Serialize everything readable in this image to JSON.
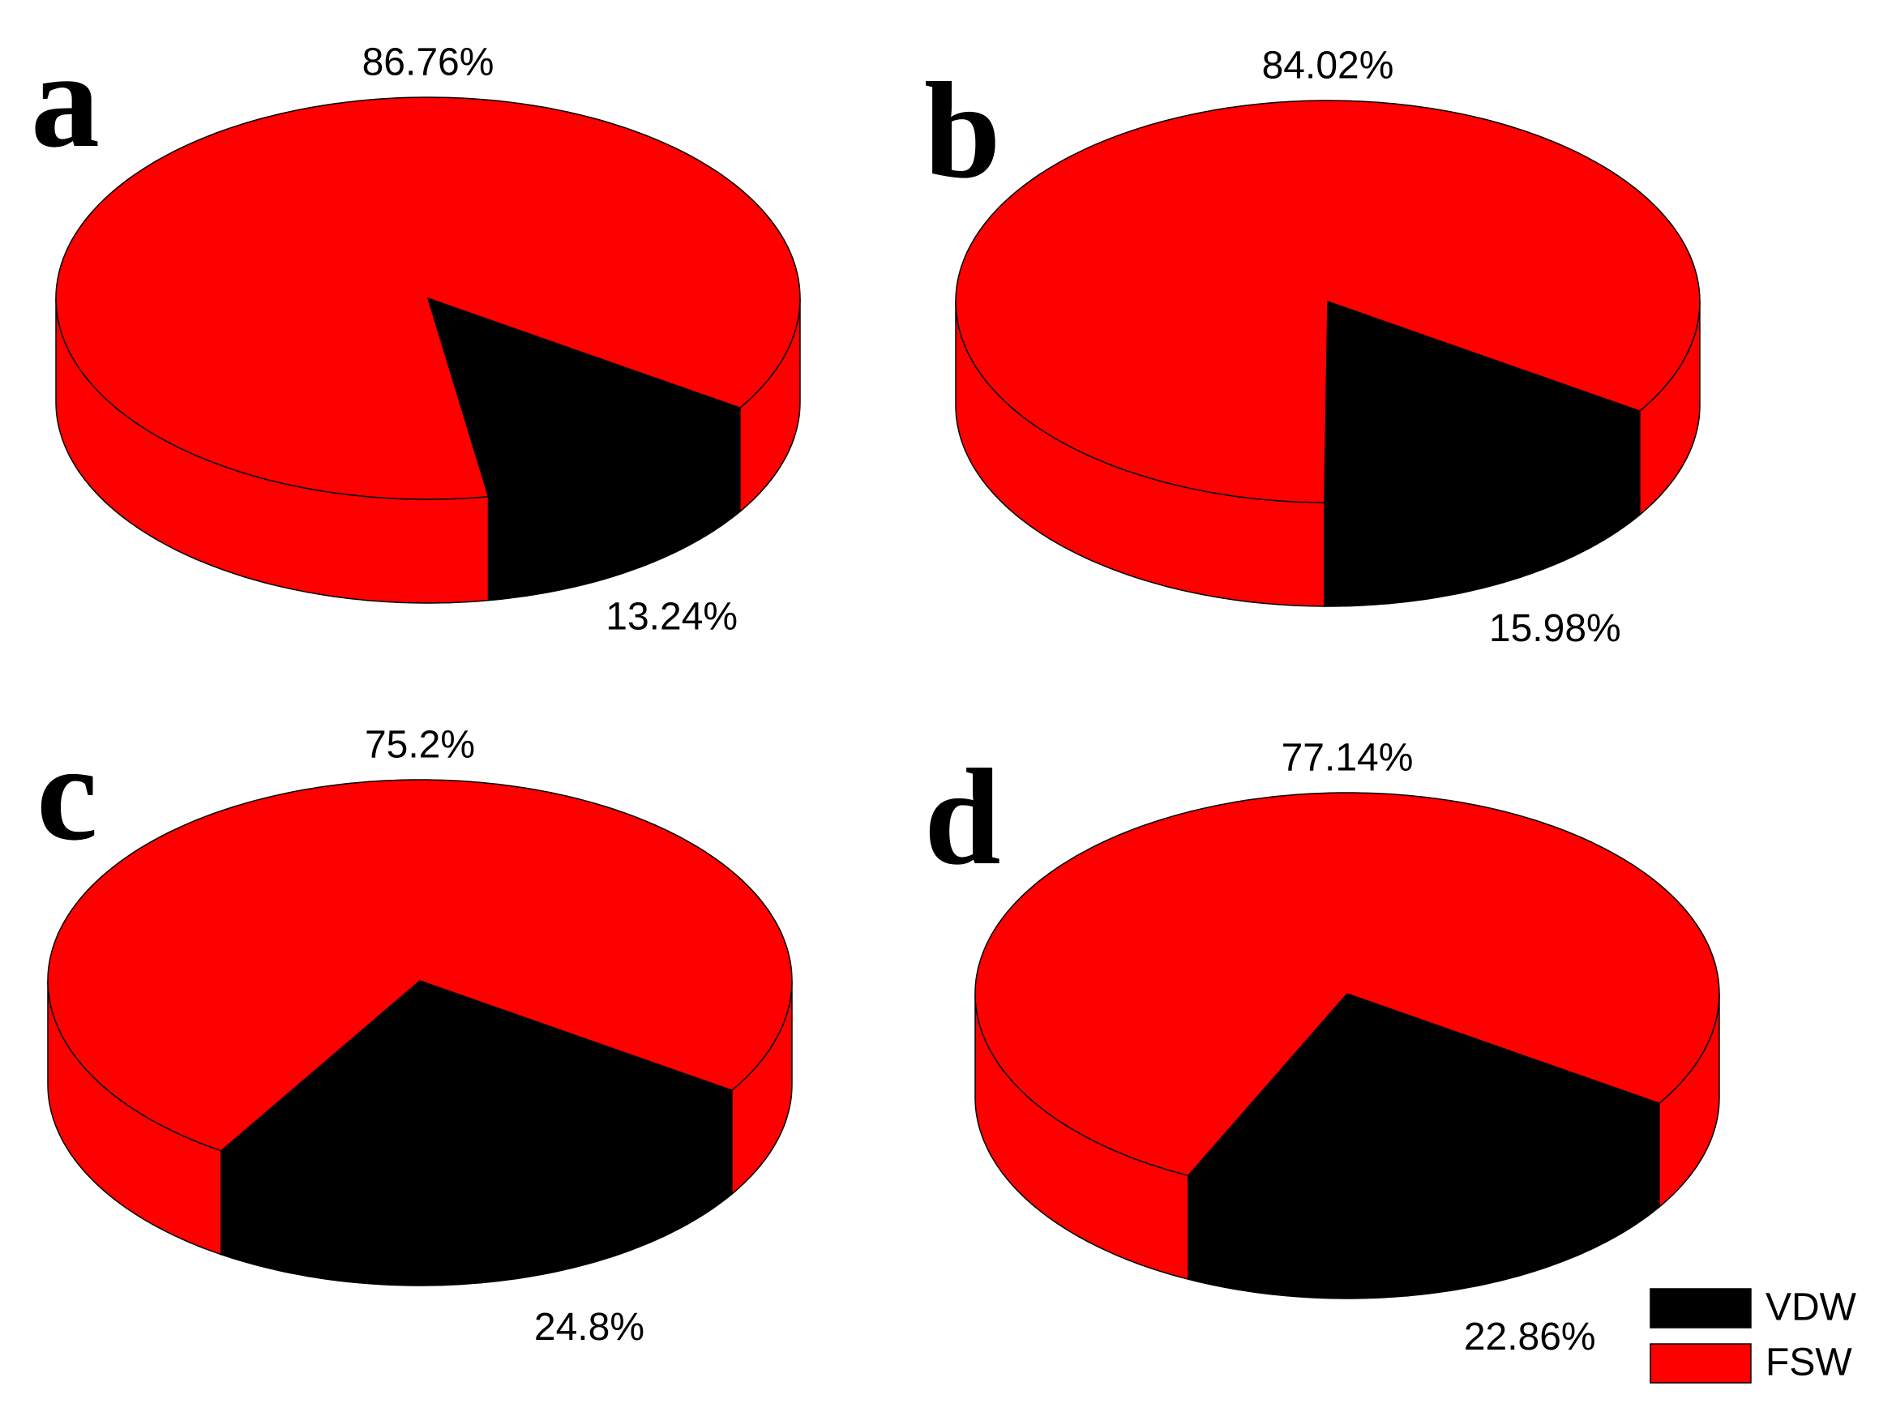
{
  "chart_data": [
    {
      "type": "pie",
      "label": "a",
      "categories": [
        "VDW",
        "FSW"
      ],
      "values": [
        13.24,
        86.76
      ],
      "value_labels": [
        "13.24%",
        "86.76%"
      ],
      "colors": [
        "#000000",
        "#ff0000"
      ],
      "legend": "lower right"
    },
    {
      "type": "pie",
      "label": "b",
      "categories": [
        "VDW",
        "FSW"
      ],
      "values": [
        15.98,
        84.02
      ],
      "value_labels": [
        "15.98%",
        "84.02%"
      ],
      "colors": [
        "#000000",
        "#ff0000"
      ]
    },
    {
      "type": "pie",
      "label": "c",
      "categories": [
        "VDW",
        "FSW"
      ],
      "values": [
        24.8,
        75.2
      ],
      "value_labels": [
        "24.8%",
        "75.2%"
      ],
      "colors": [
        "#000000",
        "#ff0000"
      ]
    },
    {
      "type": "pie",
      "label": "d",
      "categories": [
        "VDW",
        "FSW"
      ],
      "values": [
        22.86,
        77.14
      ],
      "value_labels": [
        "22.86%",
        "77.14%"
      ],
      "colors": [
        "#000000",
        "#ff0000"
      ]
    }
  ]
}
